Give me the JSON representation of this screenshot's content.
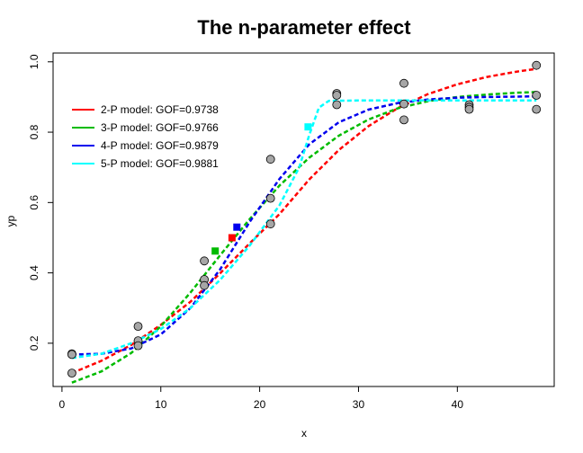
{
  "chart_data": {
    "type": "scatter",
    "title": "The n-parameter effect",
    "xlabel": "x",
    "ylabel": "yp",
    "xlim": [
      -0.9,
      49.8
    ],
    "ylim": [
      0.077,
      1.025
    ],
    "x_ticks": [
      0,
      10,
      20,
      30,
      40
    ],
    "y_ticks": [
      0.2,
      0.4,
      0.6,
      0.8,
      1.0
    ],
    "y_tick_labels": [
      "0.2",
      "0.4",
      "0.6",
      "0.8",
      "1.0"
    ],
    "legend_position": "top-left",
    "points": [
      {
        "x": 1.0,
        "y": 0.115
      },
      {
        "x": 1.0,
        "y": 0.17
      },
      {
        "x": 1.0,
        "y": 0.168
      },
      {
        "x": 7.7,
        "y": 0.248
      },
      {
        "x": 7.7,
        "y": 0.207
      },
      {
        "x": 7.7,
        "y": 0.193
      },
      {
        "x": 14.4,
        "y": 0.434
      },
      {
        "x": 14.4,
        "y": 0.381
      },
      {
        "x": 14.4,
        "y": 0.364
      },
      {
        "x": 21.1,
        "y": 0.723
      },
      {
        "x": 21.1,
        "y": 0.612
      },
      {
        "x": 21.1,
        "y": 0.539
      },
      {
        "x": 27.8,
        "y": 0.91
      },
      {
        "x": 27.8,
        "y": 0.905
      },
      {
        "x": 27.8,
        "y": 0.878
      },
      {
        "x": 34.6,
        "y": 0.939
      },
      {
        "x": 34.6,
        "y": 0.88
      },
      {
        "x": 34.6,
        "y": 0.835
      },
      {
        "x": 41.2,
        "y": 0.878
      },
      {
        "x": 41.2,
        "y": 0.871
      },
      {
        "x": 41.2,
        "y": 0.865
      },
      {
        "x": 48.0,
        "y": 0.99
      },
      {
        "x": 48.0,
        "y": 0.905
      },
      {
        "x": 48.0,
        "y": 0.865
      }
    ],
    "series": [
      {
        "name": "2-P model: GOF=0.9738",
        "color": "#ff0000",
        "curve": [
          [
            1.0,
            0.115
          ],
          [
            4.0,
            0.15
          ],
          [
            7.0,
            0.195
          ],
          [
            10.0,
            0.252
          ],
          [
            13.0,
            0.318
          ],
          [
            16.0,
            0.399
          ],
          [
            19.0,
            0.484
          ],
          [
            22.0,
            0.567
          ],
          [
            25.0,
            0.665
          ],
          [
            28.0,
            0.749
          ],
          [
            31.0,
            0.817
          ],
          [
            34.0,
            0.869
          ],
          [
            37.0,
            0.908
          ],
          [
            40.0,
            0.936
          ],
          [
            43.0,
            0.957
          ],
          [
            46.0,
            0.972
          ],
          [
            48.0,
            0.98
          ]
        ],
        "marker": {
          "x": 17.2,
          "y": 0.5
        }
      },
      {
        "name": "3-P model: GOF=0.9766",
        "color": "#00bb00",
        "curve": [
          [
            1.0,
            0.088
          ],
          [
            4.0,
            0.12
          ],
          [
            7.0,
            0.172
          ],
          [
            10.0,
            0.248
          ],
          [
            13.0,
            0.344
          ],
          [
            16.0,
            0.45
          ],
          [
            19.0,
            0.553
          ],
          [
            22.0,
            0.648
          ],
          [
            25.0,
            0.727
          ],
          [
            28.0,
            0.79
          ],
          [
            31.0,
            0.836
          ],
          [
            34.0,
            0.868
          ],
          [
            37.0,
            0.888
          ],
          [
            40.0,
            0.9
          ],
          [
            43.0,
            0.907
          ],
          [
            46.0,
            0.912
          ],
          [
            48.0,
            0.914
          ]
        ],
        "marker": {
          "x": 15.5,
          "y": 0.462
        }
      },
      {
        "name": "4-P model: GOF=0.9879",
        "color": "#0000ee",
        "curve": [
          [
            1.0,
            0.168
          ],
          [
            4.0,
            0.17
          ],
          [
            7.0,
            0.185
          ],
          [
            10.0,
            0.225
          ],
          [
            13.0,
            0.3
          ],
          [
            16.0,
            0.41
          ],
          [
            19.0,
            0.545
          ],
          [
            22.0,
            0.667
          ],
          [
            25.0,
            0.765
          ],
          [
            28.0,
            0.828
          ],
          [
            31.0,
            0.864
          ],
          [
            34.0,
            0.883
          ],
          [
            37.0,
            0.893
          ],
          [
            40.0,
            0.898
          ],
          [
            43.0,
            0.9
          ],
          [
            46.0,
            0.901
          ],
          [
            48.0,
            0.902
          ]
        ],
        "marker": {
          "x": 17.7,
          "y": 0.53
        }
      },
      {
        "name": "5-P model: GOF=0.9881",
        "color": "#00ffff",
        "curve": [
          [
            1.0,
            0.158
          ],
          [
            4.0,
            0.17
          ],
          [
            7.0,
            0.2
          ],
          [
            10.0,
            0.24
          ],
          [
            13.0,
            0.3
          ],
          [
            16.0,
            0.38
          ],
          [
            19.0,
            0.478
          ],
          [
            22.0,
            0.592
          ],
          [
            24.0,
            0.7
          ],
          [
            25.0,
            0.79
          ],
          [
            26.0,
            0.87
          ],
          [
            27.0,
            0.889
          ],
          [
            30.0,
            0.89
          ],
          [
            35.0,
            0.89
          ],
          [
            40.0,
            0.89
          ],
          [
            48.0,
            0.89
          ]
        ],
        "marker": {
          "x": 24.9,
          "y": 0.815
        }
      }
    ]
  }
}
